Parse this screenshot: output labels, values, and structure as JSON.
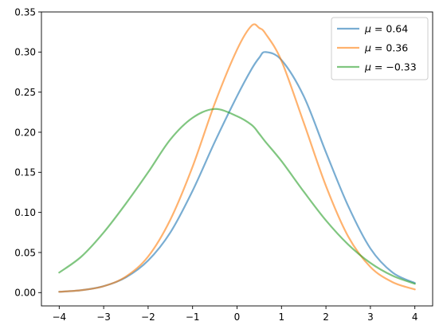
{
  "chart_data": {
    "type": "line",
    "title": "",
    "xlabel": "",
    "ylabel": "",
    "xlim": [
      -4.4,
      4.4
    ],
    "ylim": [
      -0.0166,
      0.35
    ],
    "xticks": [
      -4,
      -3,
      -2,
      -1,
      0,
      1,
      2,
      3,
      4
    ],
    "xtick_labels": [
      "−4",
      "−3",
      "−2",
      "−1",
      "0",
      "1",
      "2",
      "3",
      "4"
    ],
    "yticks": [
      0.0,
      0.05,
      0.1,
      0.15,
      0.2,
      0.25,
      0.3,
      0.35
    ],
    "ytick_labels": [
      "0.00",
      "0.05",
      "0.10",
      "0.15",
      "0.20",
      "0.25",
      "0.30",
      "0.35"
    ],
    "grid": false,
    "legend_position": "top-right",
    "x": [
      -4.0,
      -3.5,
      -3.0,
      -2.5,
      -2.0,
      -1.5,
      -1.0,
      -0.5,
      0.0,
      0.33,
      0.5,
      0.64,
      1.0,
      1.5,
      2.0,
      2.5,
      3.0,
      3.5,
      4.0
    ],
    "series": [
      {
        "name_prefix": "μ = ",
        "name_value": "0.64",
        "color": "#1f77b4",
        "values": [
          0.001,
          0.003,
          0.008,
          0.019,
          0.04,
          0.075,
          0.127,
          0.188,
          0.245,
          0.279,
          0.293,
          0.3,
          0.29,
          0.245,
          0.175,
          0.108,
          0.055,
          0.025,
          0.012
        ]
      },
      {
        "name_prefix": "μ = ",
        "name_value": "0.36",
        "color": "#ff7f0e",
        "values": [
          0.001,
          0.003,
          0.008,
          0.02,
          0.045,
          0.091,
          0.157,
          0.236,
          0.303,
          0.333,
          0.33,
          0.323,
          0.289,
          0.212,
          0.133,
          0.07,
          0.032,
          0.013,
          0.004
        ]
      },
      {
        "name_prefix": "μ = ",
        "name_value": "−0.33",
        "color": "#2ca02c",
        "values": [
          0.025,
          0.045,
          0.075,
          0.111,
          0.15,
          0.191,
          0.218,
          0.229,
          0.22,
          0.209,
          0.198,
          0.188,
          0.164,
          0.126,
          0.09,
          0.06,
          0.037,
          0.021,
          0.011
        ]
      }
    ]
  }
}
